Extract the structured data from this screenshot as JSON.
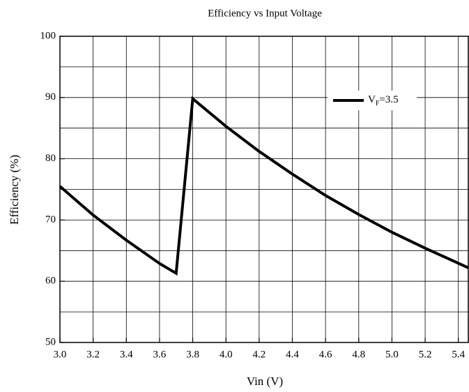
{
  "chart_data": {
    "type": "line",
    "title": "Efficiency vs Input Voltage",
    "xlabel": "Vin (V)",
    "ylabel": "Efficiency (%)",
    "x": [
      3.0,
      3.2,
      3.4,
      3.6,
      3.7,
      3.8,
      4.0,
      4.2,
      4.4,
      4.6,
      4.8,
      5.0,
      5.2,
      5.46
    ],
    "series": [
      {
        "name": "V",
        "name_subscript": "F",
        "name_suffix": "=3.5",
        "color": "#000000",
        "values": [
          75.5,
          70.8,
          66.7,
          62.9,
          61.3,
          89.8,
          85.3,
          81.2,
          77.5,
          74.0,
          70.9,
          68.0,
          65.4,
          62.2
        ]
      }
    ],
    "xlim": [
      3.0,
      5.46
    ],
    "ylim": [
      50,
      100
    ],
    "xticks": [
      {
        "value": 3.0,
        "label": "3.0"
      },
      {
        "value": 3.2,
        "label": "3.2"
      },
      {
        "value": 3.4,
        "label": "3.4"
      },
      {
        "value": 3.6,
        "label": "3.6"
      },
      {
        "value": 3.8,
        "label": "3.8"
      },
      {
        "value": 4.0,
        "label": "4.0"
      },
      {
        "value": 4.2,
        "label": "4.2"
      },
      {
        "value": 4.4,
        "label": "4.4"
      },
      {
        "value": 4.6,
        "label": "4.6"
      },
      {
        "value": 4.8,
        "label": "4.8"
      },
      {
        "value": 5.0,
        "label": "5.0"
      },
      {
        "value": 5.2,
        "label": "5.2"
      },
      {
        "value": 5.4,
        "label": "5.4"
      }
    ],
    "yticks": [
      50,
      60,
      70,
      80,
      90,
      100
    ],
    "yminor": [
      55,
      65,
      75,
      85,
      95
    ],
    "grid": true,
    "legend": "upper right"
  }
}
